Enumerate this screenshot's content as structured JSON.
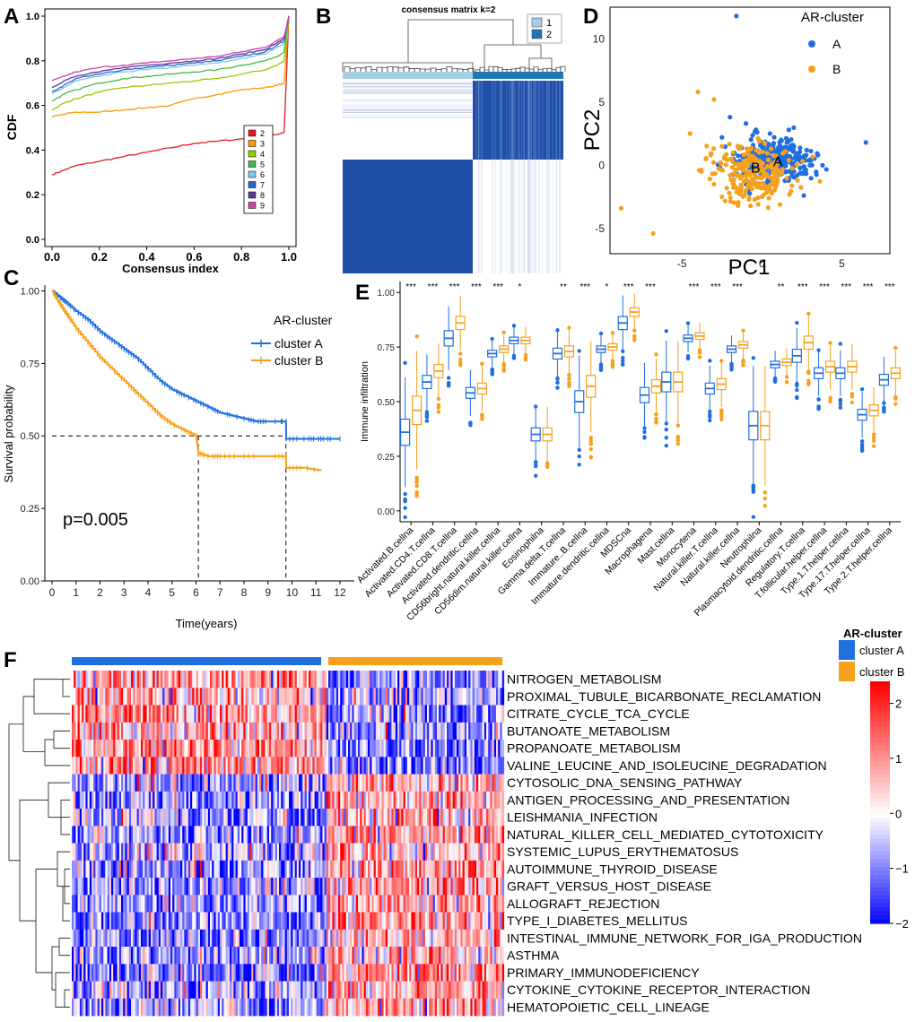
{
  "panels": {
    "a": "A",
    "b": "B",
    "c": "C",
    "d": "D",
    "e": "E",
    "f": "F"
  },
  "chart_data": [
    {
      "panel": "A",
      "type": "line",
      "title": "",
      "xlabel": "Consensus index",
      "ylabel": "CDF",
      "xlim": [
        0,
        1
      ],
      "ylim": [
        0,
        1
      ],
      "xticks": [
        "0.0",
        "0.2",
        "0.4",
        "0.6",
        "0.8",
        "1.0"
      ],
      "yticks": [
        "0.0",
        "0.2",
        "0.4",
        "0.6",
        "0.8",
        "1.0"
      ],
      "legend_position": "bottom-right",
      "x": [
        0,
        0.05,
        0.1,
        0.2,
        0.3,
        0.4,
        0.5,
        0.6,
        0.7,
        0.8,
        0.9,
        0.95,
        0.98,
        1.0
      ],
      "series": [
        {
          "name": "2",
          "color": "#e41a1c",
          "values": [
            0.29,
            0.31,
            0.33,
            0.35,
            0.37,
            0.39,
            0.41,
            0.43,
            0.44,
            0.45,
            0.46,
            0.47,
            0.48,
            1.0
          ]
        },
        {
          "name": "3",
          "color": "#ff9900",
          "values": [
            0.55,
            0.56,
            0.57,
            0.57,
            0.58,
            0.59,
            0.6,
            0.63,
            0.65,
            0.67,
            0.68,
            0.69,
            0.7,
            1.0
          ]
        },
        {
          "name": "4",
          "color": "#99cc00",
          "values": [
            0.58,
            0.61,
            0.63,
            0.66,
            0.68,
            0.69,
            0.7,
            0.71,
            0.72,
            0.74,
            0.76,
            0.78,
            0.8,
            1.0
          ]
        },
        {
          "name": "5",
          "color": "#44bb44",
          "values": [
            0.62,
            0.65,
            0.67,
            0.7,
            0.72,
            0.73,
            0.74,
            0.75,
            0.76,
            0.78,
            0.8,
            0.82,
            0.84,
            1.0
          ]
        },
        {
          "name": "6",
          "color": "#7fc7e8",
          "values": [
            0.65,
            0.68,
            0.71,
            0.73,
            0.75,
            0.76,
            0.77,
            0.78,
            0.79,
            0.81,
            0.83,
            0.86,
            0.88,
            1.0
          ]
        },
        {
          "name": "7",
          "color": "#3366cc",
          "values": [
            0.66,
            0.69,
            0.72,
            0.74,
            0.76,
            0.77,
            0.78,
            0.79,
            0.8,
            0.82,
            0.84,
            0.87,
            0.89,
            1.0
          ]
        },
        {
          "name": "8",
          "color": "#5a3b9c",
          "values": [
            0.68,
            0.71,
            0.73,
            0.75,
            0.77,
            0.78,
            0.79,
            0.8,
            0.81,
            0.83,
            0.85,
            0.88,
            0.9,
            1.0
          ]
        },
        {
          "name": "9",
          "color": "#cc44aa",
          "values": [
            0.71,
            0.73,
            0.75,
            0.77,
            0.78,
            0.79,
            0.8,
            0.81,
            0.82,
            0.84,
            0.86,
            0.89,
            0.91,
            1.0
          ]
        }
      ]
    },
    {
      "panel": "B",
      "type": "heatmap",
      "title": "consensus matrix k=2",
      "legend": [
        {
          "name": "1",
          "color": "#a6cee3"
        },
        {
          "name": "2",
          "color": "#1f78b4"
        }
      ]
    },
    {
      "panel": "D",
      "type": "scatter",
      "title": "",
      "xlabel": "PC1",
      "ylabel": "PC2",
      "legend_title": "AR-cluster",
      "xlim": [
        -9.5,
        8
      ],
      "ylim": [
        -7,
        12.5
      ],
      "xticks": [
        -5,
        0,
        5
      ],
      "yticks": [
        -5,
        0,
        5,
        10
      ],
      "series": [
        {
          "name": "A",
          "color": "#1f6fe0",
          "centroid_label": "A",
          "points": [
            [
              -1.6,
              11.8
            ],
            [
              6.5,
              1.8
            ],
            [
              3.5,
              0.8
            ],
            [
              -2.5,
              2.2
            ],
            [
              -2.0,
              3.8
            ],
            [
              -1.0,
              3.3
            ],
            [
              2.0,
              1.5
            ],
            [
              0.5,
              2.5
            ],
            [
              1.5,
              -0.5
            ],
            [
              0.0,
              -1.0
            ],
            [
              -0.5,
              1.0
            ],
            [
              1.0,
              1.0
            ],
            [
              2.5,
              0.5
            ],
            [
              -1.0,
              0.5
            ],
            [
              0.3,
              0.0
            ],
            [
              1.8,
              0.2
            ],
            [
              -0.2,
              -0.5
            ],
            [
              0.8,
              -1.3
            ],
            [
              2.2,
              -0.8
            ],
            [
              -1.5,
              1.5
            ],
            [
              1.2,
              2.0
            ],
            [
              0.0,
              1.8
            ],
            [
              2.8,
              1.2
            ],
            [
              3.0,
              0.0
            ],
            [
              -0.8,
              -0.2
            ],
            [
              0.6,
              0.6
            ],
            [
              1.6,
              1.4
            ],
            [
              2.4,
              -0.2
            ],
            [
              -0.3,
              2.6
            ],
            [
              1.0,
              -0.8
            ]
          ],
          "jitter": {
            "n": 300,
            "cx": 0.6,
            "cy": 0.4,
            "sx": 1.2,
            "sy": 0.85
          }
        },
        {
          "name": "B",
          "color": "#f5a11c",
          "centroid_label": "B",
          "points": [
            [
              -8.8,
              -3.4
            ],
            [
              -6.8,
              -5.4
            ],
            [
              -4.0,
              5.8
            ],
            [
              -3.0,
              5.2
            ],
            [
              -4.5,
              2.5
            ],
            [
              -3.5,
              0.5
            ],
            [
              -2.5,
              -2.5
            ],
            [
              -1.5,
              -3.2
            ],
            [
              -2.0,
              -0.8
            ],
            [
              -3.0,
              -1.5
            ],
            [
              -1.0,
              -2.0
            ],
            [
              0.0,
              -2.5
            ],
            [
              -2.5,
              1.5
            ],
            [
              -3.8,
              -0.5
            ],
            [
              -1.8,
              1.0
            ],
            [
              -0.5,
              -1.5
            ],
            [
              -2.2,
              -1.8
            ],
            [
              -1.2,
              -0.4
            ],
            [
              -3.2,
              0.8
            ],
            [
              -0.8,
              -2.6
            ]
          ],
          "jitter": {
            "n": 220,
            "cx": -0.6,
            "cy": -0.6,
            "sx": 1.3,
            "sy": 1.1
          }
        }
      ]
    },
    {
      "panel": "C",
      "type": "line",
      "title": "",
      "xlabel": "Time(years)",
      "ylabel": "Survival probability",
      "legend_title": "AR-cluster",
      "pvalue": "p=0.005",
      "xlim": [
        -0.3,
        12.6
      ],
      "ylim": [
        0,
        1.02
      ],
      "xticks": [
        "0",
        "1",
        "2",
        "3",
        "4",
        "5",
        "6",
        "7",
        "8",
        "9",
        "10",
        "11",
        "12"
      ],
      "yticks": [
        "0.00",
        "0.25",
        "0.50",
        "0.75",
        "1.00"
      ],
      "median_line": 0.5,
      "median_times": [
        6.1,
        9.75
      ],
      "series": [
        {
          "name": "cluster A",
          "color": "#1f6fe0",
          "x": [
            0,
            0.3,
            0.6,
            1,
            1.5,
            2,
            2.5,
            3,
            3.5,
            4,
            4.5,
            5,
            5.5,
            6,
            6.5,
            7,
            7.5,
            8,
            8.5,
            9,
            9.5,
            9.75,
            9.76,
            10.5,
            11,
            11.5,
            12
          ],
          "values": [
            1.0,
            0.98,
            0.96,
            0.93,
            0.9,
            0.86,
            0.83,
            0.8,
            0.77,
            0.73,
            0.69,
            0.66,
            0.64,
            0.62,
            0.6,
            0.58,
            0.57,
            0.56,
            0.55,
            0.55,
            0.55,
            0.55,
            0.49,
            0.49,
            0.49,
            0.49,
            0.49
          ]
        },
        {
          "name": "cluster B",
          "color": "#f5a11c",
          "x": [
            0,
            0.3,
            0.6,
            1,
            1.5,
            2,
            2.5,
            3,
            3.5,
            4,
            4.5,
            5,
            5.5,
            6,
            6.1,
            6.5,
            7,
            8,
            9,
            9.75,
            9.76,
            10.5,
            11.2
          ],
          "values": [
            1.0,
            0.96,
            0.92,
            0.87,
            0.82,
            0.77,
            0.73,
            0.69,
            0.65,
            0.61,
            0.57,
            0.54,
            0.52,
            0.5,
            0.44,
            0.43,
            0.43,
            0.43,
            0.43,
            0.43,
            0.39,
            0.39,
            0.38
          ]
        }
      ]
    },
    {
      "panel": "E",
      "type": "box",
      "ylabel": "Immune infiltration",
      "legend": "AR-cluster",
      "ylim": [
        -0.05,
        1.05
      ],
      "yticks": [
        "0.00",
        "0.25",
        "0.50",
        "0.75",
        "1.00"
      ],
      "categories": [
        "Activated.B.cellna",
        "Activated.CD4.T.cellna",
        "Activated.CD8.T.cellna",
        "Activated.dendritic.cellna",
        "CD56bright.natural.killer.cellna",
        "CD56dim.natural.killer.cellna",
        "Eosinophilna",
        "Gamma.delta.T.cellna",
        "Immature..B.cellna",
        "Immature.dendritic.cellna",
        "MDSCna",
        "Macrophagena",
        "Mast.cellna",
        "Monocytena",
        "Natural.killer.T.cellna",
        "Natural.killer.cellna",
        "Neutrophilna",
        "Plasmacytoid.dendritic.cellna",
        "Regulatory.T.cellna",
        "T.follicular.helper.cellna",
        "Type.1.T.helper.cellna",
        "Type.17.T.helper.cellna",
        "Type.2.T.helper.cellna"
      ],
      "signif": [
        "***",
        "***",
        "***",
        "***",
        "***",
        "*",
        "",
        "**",
        "***",
        "*",
        "***",
        "***",
        "",
        "***",
        "***",
        "***",
        "",
        "**",
        "***",
        "***",
        "***",
        "***",
        "***"
      ],
      "series": [
        {
          "name": "cluster A",
          "color": "#1f6fe0",
          "median": [
            0.36,
            0.59,
            0.79,
            0.54,
            0.72,
            0.78,
            0.35,
            0.72,
            0.5,
            0.74,
            0.86,
            0.53,
            0.59,
            0.79,
            0.56,
            0.74,
            0.39,
            0.67,
            0.71,
            0.63,
            0.63,
            0.44,
            0.6
          ],
          "iqr": [
            0.12,
            0.06,
            0.07,
            0.05,
            0.03,
            0.03,
            0.06,
            0.05,
            0.1,
            0.03,
            0.06,
            0.07,
            0.09,
            0.03,
            0.05,
            0.03,
            0.13,
            0.03,
            0.06,
            0.05,
            0.05,
            0.05,
            0.05
          ]
        },
        {
          "name": "cluster B",
          "color": "#f5a11c",
          "median": [
            0.46,
            0.64,
            0.86,
            0.56,
            0.74,
            0.78,
            0.35,
            0.73,
            0.57,
            0.75,
            0.91,
            0.57,
            0.59,
            0.8,
            0.58,
            0.76,
            0.39,
            0.68,
            0.77,
            0.66,
            0.66,
            0.46,
            0.63
          ],
          "iqr": [
            0.13,
            0.06,
            0.06,
            0.05,
            0.03,
            0.03,
            0.06,
            0.05,
            0.1,
            0.03,
            0.04,
            0.06,
            0.09,
            0.03,
            0.05,
            0.03,
            0.13,
            0.03,
            0.06,
            0.05,
            0.05,
            0.05,
            0.05
          ]
        }
      ]
    },
    {
      "panel": "F",
      "type": "heatmap",
      "legend_title": "AR-cluster",
      "groups": [
        {
          "name": "cluster A",
          "color": "#1f6fe0"
        },
        {
          "name": "cluster B",
          "color": "#f5a11c"
        }
      ],
      "color_scale": {
        "min": -2,
        "max": 2.4,
        "ticks": [
          "2",
          "1",
          "0",
          "−1",
          "−2"
        ],
        "low": "#1010ff",
        "mid": "#ffffff",
        "high": "#ff0000"
      },
      "rows": [
        "NITROGEN_METABOLISM",
        "PROXIMAL_TUBULE_BICARBONATE_RECLAMATION",
        "CITRATE_CYCLE_TCA_CYCLE",
        "BUTANOATE_METABOLISM",
        "PROPANOATE_METABOLISM",
        "VALINE_LEUCINE_AND_ISOLEUCINE_DEGRADATION",
        "CYTOSOLIC_DNA_SENSING_PATHWAY",
        "ANTIGEN_PROCESSING_AND_PRESENTATION",
        "LEISHMANIA_INFECTION",
        "NATURAL_KILLER_CELL_MEDIATED_CYTOTOXICITY",
        "SYSTEMIC_LUPUS_ERYTHEMATOSUS",
        "AUTOIMMUNE_THYROID_DISEASE",
        "GRAFT_VERSUS_HOST_DISEASE",
        "ALLOGRAFT_REJECTION",
        "TYPE_I_DIABETES_MELLITUS",
        "INTESTINAL_IMMUNE_NETWORK_FOR_IGA_PRODUCTION",
        "ASTHMA",
        "PRIMARY_IMMUNODEFICIENCY",
        "CYTOKINE_CYTOKINE_RECEPTOR_INTERACTION",
        "HEMATOPOIETIC_CELL_LINEAGE"
      ],
      "row_trend": [
        0.7,
        0.6,
        0.9,
        0.9,
        0.9,
        0.9,
        -0.6,
        -0.7,
        -0.7,
        -0.7,
        -0.5,
        -0.8,
        -0.8,
        -0.8,
        -0.8,
        -0.8,
        -0.6,
        -0.7,
        -0.7,
        -0.7
      ]
    }
  ]
}
